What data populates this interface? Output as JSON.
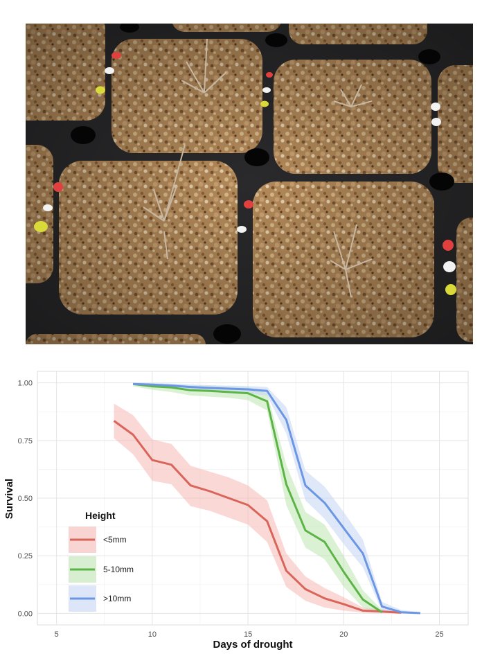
{
  "photo": {
    "tray_color": "#2a2a2c",
    "soil_color": "#b48a5a",
    "marker_colors": [
      "#e0413e",
      "#f2f2f2",
      "#d9d93a"
    ]
  },
  "chart_data": {
    "type": "line",
    "title": "",
    "xlabel": "Days of drought",
    "ylabel": "Survival",
    "xlim": [
      4.0,
      26.5
    ],
    "ylim": [
      -0.05,
      1.05
    ],
    "xticks": [
      5,
      10,
      15,
      20,
      25
    ],
    "yticks": [
      0.0,
      0.25,
      0.5,
      0.75,
      1.0
    ],
    "ytick_labels": [
      "0.00",
      "0.25",
      "0.50",
      "0.75",
      "1.00"
    ],
    "grid": true,
    "legend": {
      "title": "Height",
      "position": "bottom-left",
      "entries": [
        "<5mm",
        "5-10mm",
        ">10mm"
      ]
    },
    "series": [
      {
        "name": "<5mm",
        "color": "#d9655a",
        "fill": "#f4b8b4",
        "x": [
          8,
          9,
          10,
          11,
          12,
          13,
          14,
          15,
          16,
          17,
          18,
          19,
          20,
          21,
          22,
          23
        ],
        "y": [
          0.835,
          0.775,
          0.665,
          0.645,
          0.555,
          0.53,
          0.5,
          0.47,
          0.4,
          0.185,
          0.105,
          0.065,
          0.04,
          0.012,
          0.008,
          0.003
        ],
        "lower": [
          0.76,
          0.69,
          0.575,
          0.56,
          0.465,
          0.445,
          0.415,
          0.385,
          0.31,
          0.115,
          0.055,
          0.025,
          0.012,
          0.003,
          0.002,
          0.0
        ],
        "upper": [
          0.91,
          0.86,
          0.755,
          0.735,
          0.64,
          0.615,
          0.59,
          0.555,
          0.49,
          0.26,
          0.16,
          0.11,
          0.07,
          0.025,
          0.018,
          0.01
        ]
      },
      {
        "name": "5-10mm",
        "color": "#5cb346",
        "fill": "#bde5b0",
        "x": [
          9,
          10,
          11,
          12,
          13,
          14,
          15,
          16,
          17,
          18,
          19,
          20,
          21,
          22
        ],
        "y": [
          0.995,
          0.985,
          0.98,
          0.968,
          0.965,
          0.96,
          0.955,
          0.92,
          0.56,
          0.36,
          0.31,
          0.18,
          0.06,
          0.005
        ],
        "lower": [
          0.985,
          0.97,
          0.96,
          0.945,
          0.94,
          0.935,
          0.925,
          0.88,
          0.47,
          0.285,
          0.235,
          0.115,
          0.025,
          0.0
        ],
        "upper": [
          1.0,
          0.998,
          0.995,
          0.99,
          0.988,
          0.985,
          0.982,
          0.955,
          0.645,
          0.44,
          0.385,
          0.25,
          0.1,
          0.015
        ]
      },
      {
        "name": ">10mm",
        "color": "#6b96e3",
        "fill": "#c4d5f4",
        "x": [
          9,
          10,
          11,
          12,
          13,
          14,
          15,
          16,
          17,
          18,
          19,
          20,
          21,
          22,
          23,
          24
        ],
        "y": [
          0.995,
          0.992,
          0.988,
          0.982,
          0.978,
          0.975,
          0.972,
          0.965,
          0.84,
          0.555,
          0.48,
          0.37,
          0.26,
          0.03,
          0.005,
          0.001
        ],
        "lower": [
          0.99,
          0.985,
          0.978,
          0.97,
          0.965,
          0.96,
          0.955,
          0.945,
          0.78,
          0.49,
          0.41,
          0.3,
          0.2,
          0.01,
          0.0,
          0.0
        ],
        "upper": [
          1.0,
          0.999,
          0.997,
          0.993,
          0.99,
          0.988,
          0.986,
          0.982,
          0.895,
          0.62,
          0.55,
          0.44,
          0.32,
          0.05,
          0.015,
          0.005
        ]
      }
    ]
  }
}
